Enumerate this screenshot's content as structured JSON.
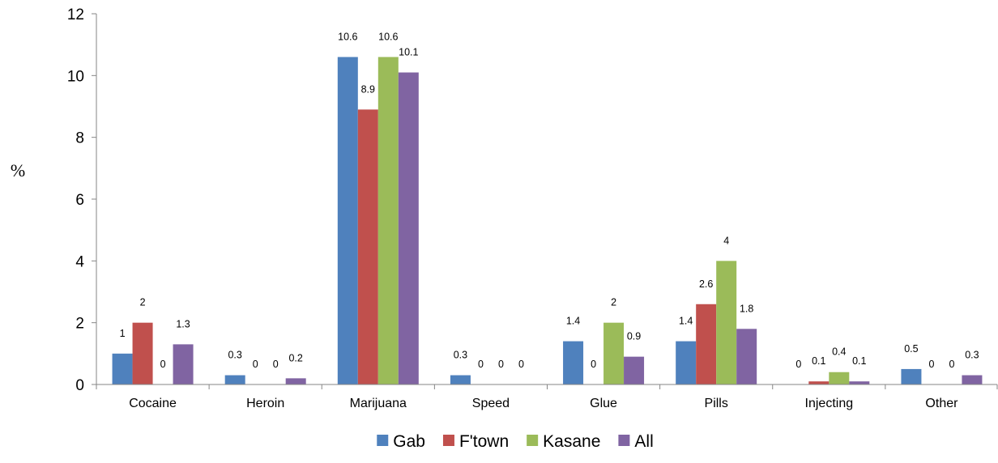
{
  "chart_data": {
    "type": "bar",
    "title": "",
    "xlabel": "",
    "ylabel": "%",
    "ylim": [
      0,
      12
    ],
    "yticks": [
      0,
      2,
      4,
      6,
      8,
      10,
      12
    ],
    "grid": false,
    "legend_position": "bottom",
    "categories": [
      "Cocaine",
      "Heroin",
      "Marijuana",
      "Speed",
      "Glue",
      "Pills",
      "Injecting",
      "Other"
    ],
    "series": [
      {
        "name": "Gab",
        "color": "#4F81BD",
        "values": [
          1,
          0.3,
          10.6,
          0.3,
          1.4,
          1.4,
          0,
          0.5
        ]
      },
      {
        "name": "F'town",
        "color": "#C0504D",
        "values": [
          2,
          0,
          8.9,
          0,
          0,
          2.6,
          0.1,
          0
        ]
      },
      {
        "name": "Kasane",
        "color": "#9BBB59",
        "values": [
          0,
          0,
          10.6,
          0,
          2,
          4,
          0.4,
          0
        ]
      },
      {
        "name": "All",
        "color": "#8064A2",
        "values": [
          1.3,
          0.2,
          10.1,
          0,
          0.9,
          1.8,
          0.1,
          0.3
        ]
      }
    ]
  }
}
